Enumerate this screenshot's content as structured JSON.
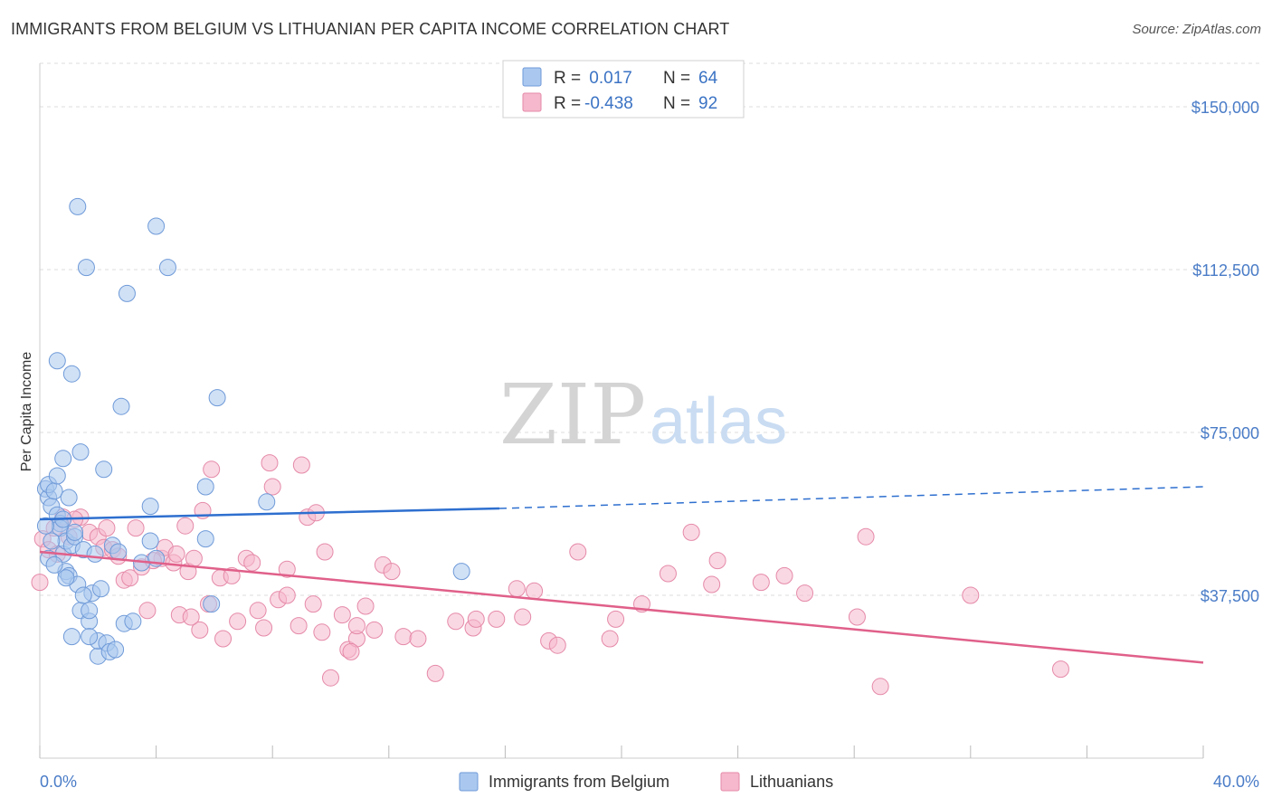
{
  "title": "IMMIGRANTS FROM BELGIUM VS LITHUANIAN PER CAPITA INCOME CORRELATION CHART",
  "source": "Source: ZipAtlas.com",
  "watermark": {
    "zip": "ZIP",
    "atlas": "atlas"
  },
  "colors": {
    "belgium_fill": "#aac8ef",
    "belgium_stroke": "#6f9ad8",
    "belgium_line": "#2e6fcf",
    "lithuanian_fill": "#f5b8cc",
    "lithuanian_stroke": "#e58aa8",
    "lithuanian_line": "#e0608a",
    "grid": "#dddddd",
    "tick_label": "#4a7cc7"
  },
  "legend": {
    "rows": [
      {
        "r_label": "R =",
        "r_value": " 0.017",
        "n_label": "N =",
        "n_value": "64"
      },
      {
        "r_label": "R =",
        "r_value": "-0.438",
        "n_label": "N =",
        "n_value": "92"
      }
    ]
  },
  "chart_data": {
    "type": "scatter",
    "title": "IMMIGRANTS FROM BELGIUM VS LITHUANIAN PER CAPITA INCOME CORRELATION CHART",
    "xlabel": "",
    "ylabel": "Per Capita Income",
    "xlim": [
      0,
      40
    ],
    "ylim": [
      0,
      160000
    ],
    "x_tick_labels": [
      "0.0%",
      "40.0%"
    ],
    "y_ticks": [
      37500,
      75000,
      112500,
      150000
    ],
    "y_tick_labels": [
      "$37,500",
      "$75,000",
      "$112,500",
      "$150,000"
    ],
    "grid": true,
    "legend_position": "top-center",
    "series": [
      {
        "name": "Immigrants from Belgium",
        "r": 0.017,
        "n": 64,
        "trend": {
          "x": [
            0,
            15.8
          ],
          "y": [
            55000,
            57500
          ],
          "dashed_to": {
            "x": 40,
            "y": 62500
          }
        },
        "points": [
          [
            0.2,
            62000
          ],
          [
            0.3,
            60000
          ],
          [
            0.3,
            63000
          ],
          [
            0.4,
            58000
          ],
          [
            0.5,
            61500
          ],
          [
            0.6,
            56000
          ],
          [
            0.6,
            65000
          ],
          [
            0.7,
            54000
          ],
          [
            0.7,
            53000
          ],
          [
            0.8,
            69000
          ],
          [
            0.8,
            47000
          ],
          [
            0.9,
            50000
          ],
          [
            0.9,
            43000
          ],
          [
            1.0,
            42000
          ],
          [
            1.0,
            60000
          ],
          [
            1.1,
            49000
          ],
          [
            1.1,
            88500
          ],
          [
            1.2,
            51000
          ],
          [
            1.2,
            52000
          ],
          [
            1.3,
            40000
          ],
          [
            1.4,
            70500
          ],
          [
            1.4,
            34000
          ],
          [
            1.5,
            48000
          ],
          [
            1.6,
            113000
          ],
          [
            1.7,
            31500
          ],
          [
            1.7,
            34000
          ],
          [
            1.8,
            38000
          ],
          [
            2.0,
            23500
          ],
          [
            2.0,
            27000
          ],
          [
            2.2,
            66500
          ],
          [
            2.3,
            26500
          ],
          [
            2.5,
            49000
          ],
          [
            2.8,
            81000
          ],
          [
            2.9,
            31000
          ],
          [
            3.0,
            107000
          ],
          [
            3.2,
            31500
          ],
          [
            3.5,
            45000
          ],
          [
            3.8,
            58000
          ],
          [
            3.8,
            50000
          ],
          [
            4.0,
            46000
          ],
          [
            4.0,
            122500
          ],
          [
            4.4,
            113000
          ],
          [
            5.7,
            50500
          ],
          [
            5.7,
            62500
          ],
          [
            5.9,
            35500
          ],
          [
            6.1,
            83000
          ],
          [
            7.8,
            59000
          ],
          [
            14.5,
            43000
          ],
          [
            0.6,
            91500
          ],
          [
            1.1,
            28000
          ],
          [
            1.7,
            28000
          ],
          [
            2.4,
            24500
          ],
          [
            2.6,
            25000
          ],
          [
            2.7,
            47500
          ],
          [
            0.3,
            46000
          ],
          [
            0.4,
            50000
          ],
          [
            1.3,
            127000
          ],
          [
            0.9,
            41500
          ],
          [
            0.5,
            44500
          ],
          [
            0.2,
            53500
          ],
          [
            0.8,
            55000
          ],
          [
            1.9,
            47000
          ],
          [
            1.5,
            37500
          ],
          [
            2.1,
            39000
          ]
        ]
      },
      {
        "name": "Lithuanians",
        "r": -0.438,
        "n": 92,
        "trend": {
          "x": [
            0,
            40
          ],
          "y": [
            47500,
            22000
          ]
        },
        "points": [
          [
            0.0,
            40500
          ],
          [
            0.1,
            50500
          ],
          [
            0.5,
            53000
          ],
          [
            0.8,
            55500
          ],
          [
            1.0,
            51000
          ],
          [
            1.4,
            55500
          ],
          [
            1.7,
            52000
          ],
          [
            2.0,
            51000
          ],
          [
            2.2,
            48500
          ],
          [
            2.3,
            53000
          ],
          [
            2.5,
            48000
          ],
          [
            2.9,
            41000
          ],
          [
            3.1,
            41500
          ],
          [
            3.3,
            53000
          ],
          [
            3.5,
            44000
          ],
          [
            3.7,
            34000
          ],
          [
            4.2,
            46000
          ],
          [
            4.3,
            48500
          ],
          [
            4.6,
            45000
          ],
          [
            4.8,
            33000
          ],
          [
            5.0,
            53500
          ],
          [
            5.1,
            43000
          ],
          [
            5.3,
            46000
          ],
          [
            5.5,
            29500
          ],
          [
            5.6,
            57000
          ],
          [
            5.8,
            35500
          ],
          [
            5.9,
            66500
          ],
          [
            6.2,
            41500
          ],
          [
            6.3,
            27500
          ],
          [
            6.6,
            42000
          ],
          [
            6.8,
            31500
          ],
          [
            7.1,
            46000
          ],
          [
            7.3,
            45000
          ],
          [
            7.5,
            34000
          ],
          [
            7.7,
            30000
          ],
          [
            7.9,
            68000
          ],
          [
            8.0,
            62500
          ],
          [
            8.2,
            36500
          ],
          [
            8.5,
            37500
          ],
          [
            8.5,
            43500
          ],
          [
            8.9,
            30500
          ],
          [
            9.0,
            67500
          ],
          [
            9.2,
            55500
          ],
          [
            9.4,
            35500
          ],
          [
            9.5,
            56500
          ],
          [
            9.7,
            29000
          ],
          [
            9.8,
            47500
          ],
          [
            10.0,
            18500
          ],
          [
            10.4,
            33000
          ],
          [
            10.6,
            25000
          ],
          [
            10.9,
            27500
          ],
          [
            11.2,
            35000
          ],
          [
            11.5,
            29500
          ],
          [
            11.8,
            44500
          ],
          [
            12.1,
            43000
          ],
          [
            12.5,
            28000
          ],
          [
            13.0,
            27500
          ],
          [
            13.6,
            19500
          ],
          [
            14.3,
            31500
          ],
          [
            14.9,
            30000
          ],
          [
            15.0,
            32000
          ],
          [
            15.7,
            32000
          ],
          [
            16.4,
            39000
          ],
          [
            17.0,
            38500
          ],
          [
            17.5,
            27000
          ],
          [
            17.8,
            26000
          ],
          [
            18.5,
            47500
          ],
          [
            19.6,
            27500
          ],
          [
            19.8,
            32000
          ],
          [
            20.7,
            35500
          ],
          [
            21.6,
            42500
          ],
          [
            22.4,
            52000
          ],
          [
            23.1,
            40000
          ],
          [
            23.3,
            45500
          ],
          [
            24.8,
            40500
          ],
          [
            25.6,
            42000
          ],
          [
            26.3,
            38000
          ],
          [
            28.1,
            32500
          ],
          [
            28.4,
            51000
          ],
          [
            28.9,
            16500
          ],
          [
            32.0,
            37500
          ],
          [
            35.1,
            20500
          ],
          [
            0.3,
            48000
          ],
          [
            0.6,
            47000
          ],
          [
            1.2,
            55000
          ],
          [
            2.7,
            46500
          ],
          [
            3.9,
            45500
          ],
          [
            4.7,
            47000
          ],
          [
            5.2,
            32500
          ],
          [
            10.7,
            24500
          ],
          [
            10.9,
            30500
          ],
          [
            16.6,
            32500
          ]
        ]
      }
    ]
  },
  "bottom_legend": [
    {
      "label": "Immigrants from Belgium"
    },
    {
      "label": "Lithuanians"
    }
  ]
}
